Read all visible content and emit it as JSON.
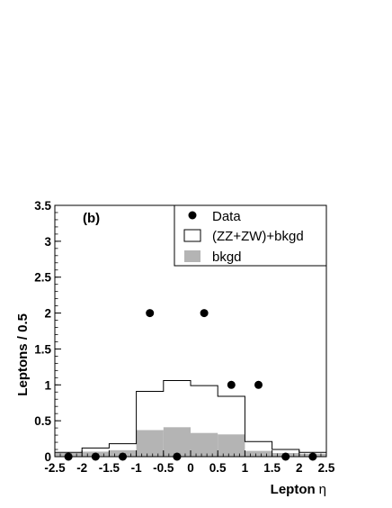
{
  "chart_data": {
    "type": "bar",
    "panel_label": "(b)",
    "xlabel_text": "Lepton",
    "xlabel_symbol": "η",
    "ylabel": "Leptons / 0.5",
    "xlim": [
      -2.5,
      2.5
    ],
    "ylim": [
      0,
      3.5
    ],
    "x_ticks": [
      "-2.5",
      "-2",
      "-1.5",
      "-1",
      "-0.5",
      "0",
      "0.5",
      "1",
      "1.5",
      "2",
      "2.5"
    ],
    "y_ticks": [
      "0",
      "0.5",
      "1",
      "1.5",
      "2",
      "2.5",
      "3",
      "3.5"
    ],
    "bin_edges": [
      -2.5,
      -2.0,
      -1.5,
      -1.0,
      -0.5,
      0.0,
      0.5,
      1.0,
      1.5,
      2.0,
      2.5
    ],
    "series": [
      {
        "name": "Data",
        "style": "points",
        "x": [
          -2.25,
          -1.75,
          -1.25,
          -0.75,
          -0.25,
          0.25,
          0.75,
          1.25,
          1.75,
          2.25
        ],
        "values": [
          0,
          0,
          0,
          2,
          0,
          2,
          1,
          1,
          0,
          0
        ]
      },
      {
        "name": "(ZZ+ZW)+bkgd",
        "style": "open-histogram",
        "values": [
          0.06,
          0.12,
          0.18,
          0.91,
          1.06,
          0.99,
          0.84,
          0.21,
          0.1,
          0.06
        ]
      },
      {
        "name": "bkgd",
        "style": "filled-histogram",
        "values": [
          0.05,
          0.07,
          0.09,
          0.37,
          0.41,
          0.33,
          0.31,
          0.08,
          0.05,
          0.04
        ]
      }
    ],
    "legend_position": "top-right",
    "colors": {
      "fill_bkgd": "#b4b4b4",
      "line": "#000000",
      "marker": "#000000"
    },
    "grid": false
  }
}
